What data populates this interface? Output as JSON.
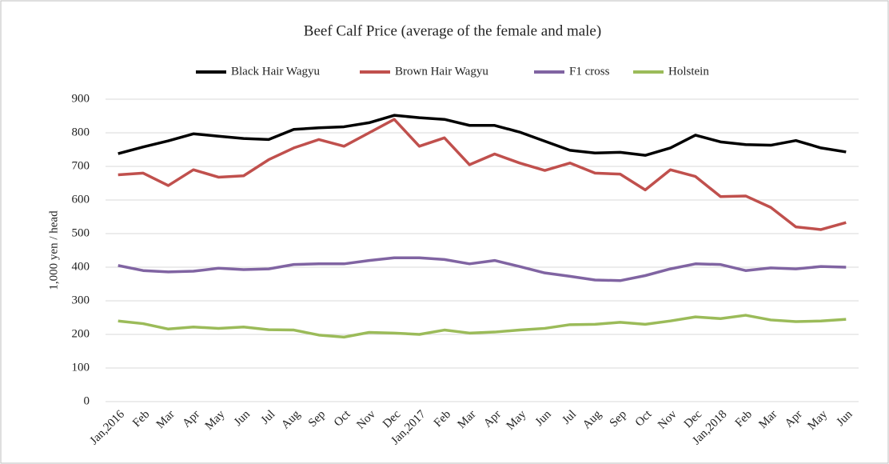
{
  "chart_data": {
    "type": "line",
    "title": "Beef Calf Price (average  of the female and male)",
    "y_label": "1,000 yen / head",
    "categories": [
      "Jan,2016",
      "Feb",
      "Mar",
      "Apr",
      "May",
      "Jun",
      "Jul",
      "Aug",
      "Sep",
      "Oct",
      "Nov",
      "Dec",
      "Jan,2017",
      "Feb",
      "Mar",
      "Apr",
      "May",
      "Jun",
      "Jul",
      "Aug",
      "Sep",
      "Oct",
      "Nov",
      "Dec",
      "Jan,2018",
      "Feb",
      "Mar",
      "Apr",
      "May",
      "Jun"
    ],
    "series": [
      {
        "name": "Black Hair Wagyu",
        "color": "#000000",
        "values": [
          738,
          758,
          776,
          797,
          790,
          783,
          780,
          810,
          815,
          818,
          830,
          852,
          845,
          840,
          822,
          822,
          802,
          775,
          748,
          740,
          742,
          733,
          755,
          793,
          773,
          765,
          763,
          777,
          755,
          743
        ]
      },
      {
        "name": "Brown Hair Wagyu",
        "color": "#c0504d",
        "values": [
          675,
          680,
          643,
          690,
          668,
          672,
          720,
          755,
          780,
          760,
          800,
          840,
          760,
          785,
          705,
          737,
          710,
          688,
          710,
          680,
          677,
          630,
          690,
          670,
          610,
          612,
          578,
          520,
          512,
          533
        ]
      },
      {
        "name": "F1 cross",
        "color": "#8064a2",
        "values": [
          405,
          390,
          386,
          388,
          397,
          393,
          395,
          408,
          410,
          410,
          420,
          428,
          428,
          423,
          410,
          420,
          402,
          383,
          373,
          362,
          360,
          375,
          395,
          410,
          408,
          390,
          398,
          395,
          402,
          400
        ]
      },
      {
        "name": "Holstein",
        "color": "#9bbb59",
        "values": [
          240,
          232,
          216,
          222,
          218,
          222,
          214,
          213,
          198,
          192,
          206,
          204,
          200,
          213,
          204,
          207,
          213,
          218,
          229,
          230,
          236,
          230,
          240,
          252,
          247,
          257,
          243,
          238,
          240,
          245
        ]
      }
    ],
    "ylim": [
      0,
      900
    ],
    "yticks": [
      0,
      100,
      200,
      300,
      400,
      500,
      600,
      700,
      800,
      900
    ],
    "grid": true,
    "legend": "top"
  }
}
